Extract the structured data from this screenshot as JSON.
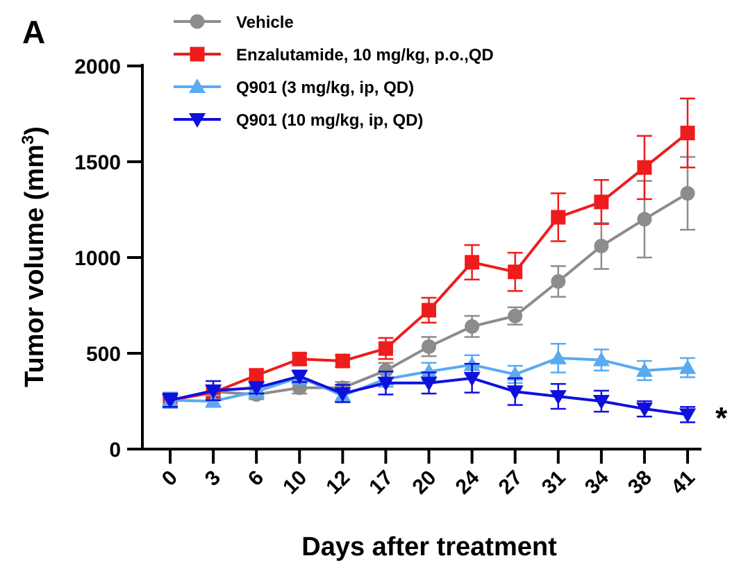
{
  "panel_label": "A",
  "significance_marker": "*",
  "chart_data": {
    "type": "line",
    "title": "",
    "xlabel": "Days after treatment",
    "ylabel": "Tumor volume (mm",
    "ylabel_superscript": "3",
    "ylabel_suffix": ")",
    "x": [
      0,
      3,
      6,
      10,
      12,
      17,
      20,
      24,
      27,
      31,
      34,
      38,
      41
    ],
    "x_tick_labels": [
      "0",
      "3",
      "6",
      "10",
      "12",
      "17",
      "20",
      "24",
      "27",
      "31",
      "34",
      "38",
      "41"
    ],
    "y_ticks": [
      0,
      500,
      1000,
      1500,
      2000
    ],
    "y_tick_labels": [
      "0",
      "500",
      "1000",
      "1500",
      "2000"
    ],
    "ylim": [
      0,
      2000
    ],
    "grid": false,
    "legend_position": "top",
    "series": [
      {
        "name": "Vehicle",
        "color": "#8c8c8c",
        "marker": "circle",
        "values": [
          255,
          300,
          285,
          320,
          320,
          410,
          535,
          640,
          695,
          875,
          1060,
          1200,
          1335
        ],
        "errors": [
          30,
          30,
          25,
          30,
          30,
          40,
          50,
          55,
          45,
          80,
          120,
          200,
          190
        ]
      },
      {
        "name": "Enzalutamide, 10 mg/kg, p.o.,QD",
        "color": "#ee1c1c",
        "marker": "square",
        "values": [
          255,
          295,
          385,
          470,
          460,
          525,
          725,
          975,
          925,
          1210,
          1290,
          1470,
          1650
        ],
        "errors": [
          30,
          35,
          30,
          30,
          30,
          55,
          65,
          90,
          100,
          125,
          115,
          165,
          180
        ]
      },
      {
        "name": "Q901 (3 mg/kg, ip, QD)",
        "color": "#5aaaf0",
        "marker": "triangle-up",
        "values": [
          255,
          250,
          300,
          375,
          280,
          365,
          405,
          440,
          390,
          475,
          465,
          410,
          425
        ],
        "errors": [
          40,
          30,
          30,
          35,
          30,
          40,
          45,
          50,
          45,
          75,
          55,
          50,
          50
        ]
      },
      {
        "name": "Q901 (10 mg/kg, ip, QD)",
        "color": "#1010dd",
        "marker": "triangle-down",
        "values": [
          255,
          305,
          320,
          380,
          290,
          345,
          345,
          370,
          300,
          275,
          250,
          210,
          180
        ],
        "errors": [
          35,
          50,
          30,
          30,
          45,
          60,
          55,
          75,
          70,
          65,
          55,
          40,
          40
        ]
      }
    ]
  }
}
